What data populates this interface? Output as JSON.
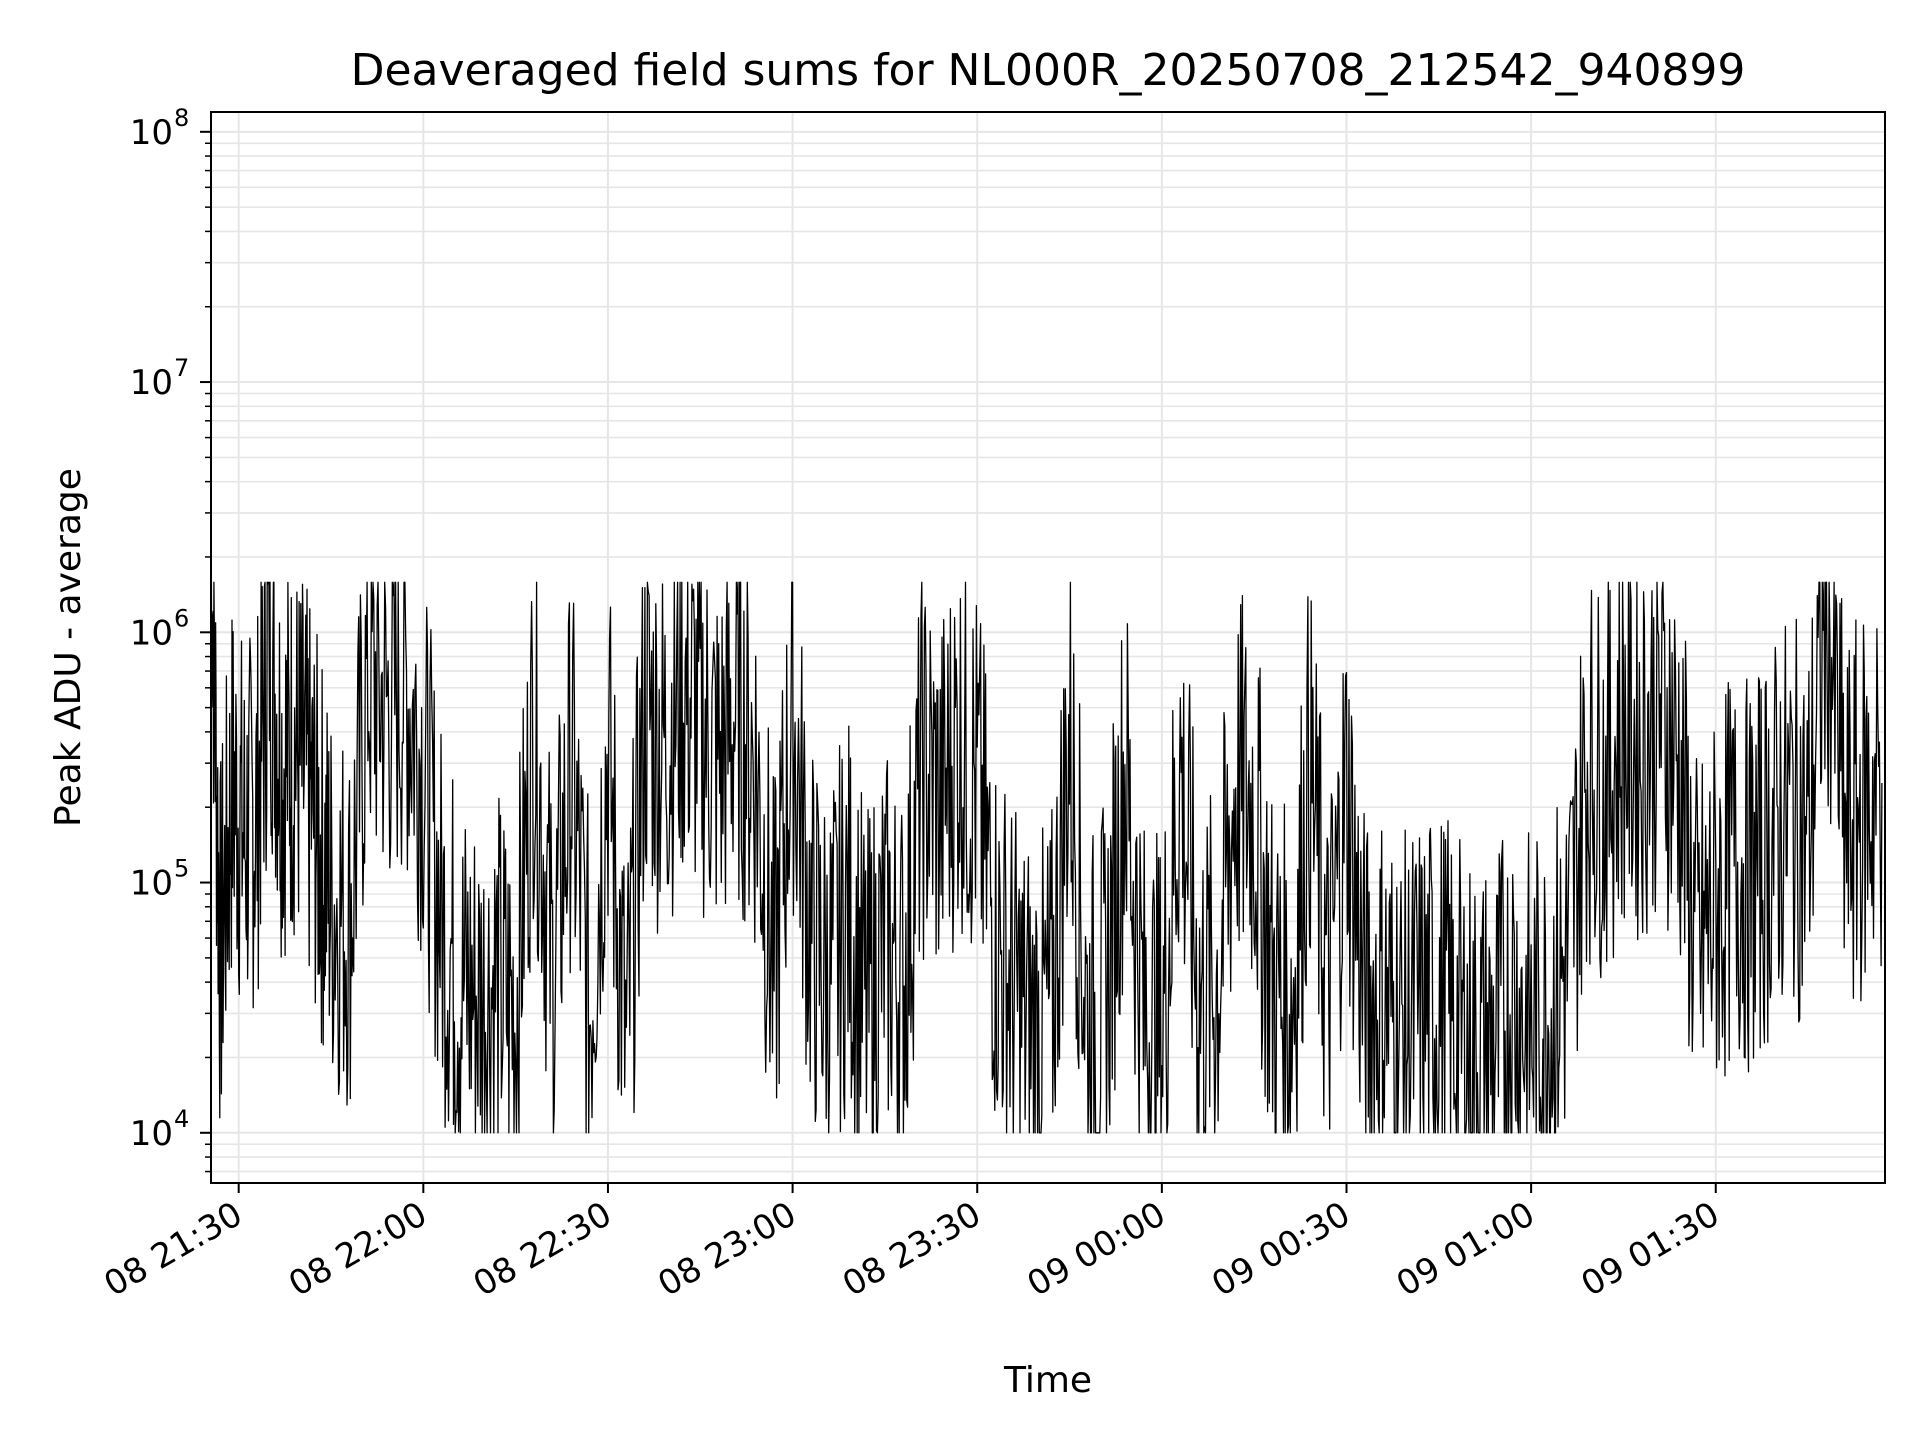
{
  "chart_data": {
    "type": "line",
    "title": "Deaveraged field sums for NL000R_20250708_212542_940899",
    "xlabel": "Time",
    "ylabel": "Peak ADU - average",
    "y_scale": "log",
    "ylim": [
      6300,
      120000000
    ],
    "xlim": [
      "2025-07-08 21:25:30",
      "2025-07-09 01:57:30"
    ],
    "x_ticks": [
      "08 21:30",
      "08 22:00",
      "08 22:30",
      "08 23:00",
      "08 23:30",
      "09 00:00",
      "09 00:30",
      "09 01:00",
      "09 01:30"
    ],
    "y_ticks": [
      {
        "base": "10",
        "exp": "4",
        "value": 10000
      },
      {
        "base": "10",
        "exp": "5",
        "value": 100000
      },
      {
        "base": "10",
        "exp": "6",
        "value": 1000000
      },
      {
        "base": "10",
        "exp": "7",
        "value": 10000000
      },
      {
        "base": "10",
        "exp": "8",
        "value": 100000000
      }
    ],
    "grid": true,
    "line_color": "#000000",
    "grid_color": "#e6e6e6",
    "series": [
      {
        "x": [
          "21:25:30",
          "21:27:00",
          "21:29:00",
          "21:31:00",
          "21:33:00",
          "21:35:00",
          "21:37:00",
          "21:39:00",
          "21:41:00",
          "21:43:00",
          "21:45:00",
          "21:48:00",
          "21:51:00",
          "21:54:00",
          "21:57:00",
          "22:00:00",
          "22:03:00",
          "22:06:00",
          "22:09:00",
          "22:12:00",
          "22:15:00",
          "22:18:00",
          "22:21:00",
          "22:24:00",
          "22:27:00",
          "22:30:00",
          "22:33:00",
          "22:36:00",
          "22:39:00",
          "22:42:00",
          "22:45:00",
          "22:48:00",
          "22:51:00",
          "22:54:00",
          "22:57:00",
          "23:00:00",
          "23:03:00",
          "23:06:00",
          "23:09:00",
          "23:12:00",
          "23:15:00",
          "23:18:00",
          "23:21:00",
          "23:24:00",
          "23:27:00",
          "23:30:00",
          "23:33:00",
          "23:36:00",
          "23:39:00",
          "23:42:00",
          "23:45:00",
          "23:48:00",
          "23:51:00",
          "23:54:00",
          "23:57:00",
          "00:00:00",
          "00:03:00",
          "00:06:00",
          "00:09:00",
          "00:12:00",
          "00:15:00",
          "00:18:00",
          "00:21:00",
          "00:24:00",
          "00:27:00",
          "00:30:00",
          "00:33:00",
          "00:36:00",
          "00:39:00",
          "00:42:00",
          "00:45:00",
          "00:48:00",
          "00:51:00",
          "00:54:00",
          "00:57:00",
          "01:00:00",
          "01:03:00",
          "01:06:00",
          "01:09:00",
          "01:12:00",
          "01:15:00",
          "01:18:00",
          "01:21:00",
          "01:24:00",
          "01:27:00",
          "01:30:00",
          "01:33:00",
          "01:36:00",
          "01:39:00",
          "01:42:00",
          "01:45:00",
          "01:48:00",
          "01:51:00",
          "01:54:00",
          "01:57:00"
        ],
        "y": [
          3000000,
          50000,
          250000,
          150000,
          200000,
          1000000,
          300000,
          350000,
          250000,
          150000,
          90000,
          70000,
          700000,
          500000,
          650000,
          300000,
          70000,
          40000,
          35000,
          40000,
          30000,
          500000,
          40000,
          300000,
          30000,
          350000,
          20000,
          500000,
          350000,
          600000,
          450000,
          300000,
          500000,
          300000,
          40000,
          500000,
          60000,
          40000,
          80000,
          30000,
          60000,
          40000,
          300000,
          200000,
          400000,
          250000,
          60000,
          35000,
          25000,
          30000,
          400000,
          25000,
          35000,
          300000,
          30000,
          25000,
          300000,
          35000,
          40000,
          250000,
          200000,
          40000,
          30000,
          300000,
          35000,
          250000,
          30000,
          35000,
          25000,
          30000,
          35000,
          25000,
          20000,
          22000,
          35000,
          25000,
          30000,
          50000,
          300000,
          250000,
          400000,
          350000,
          500000,
          300000,
          50000,
          80000,
          120000,
          100000,
          150000,
          200000,
          150000,
          1500000,
          150000,
          200000,
          250000
        ]
      }
    ]
  }
}
